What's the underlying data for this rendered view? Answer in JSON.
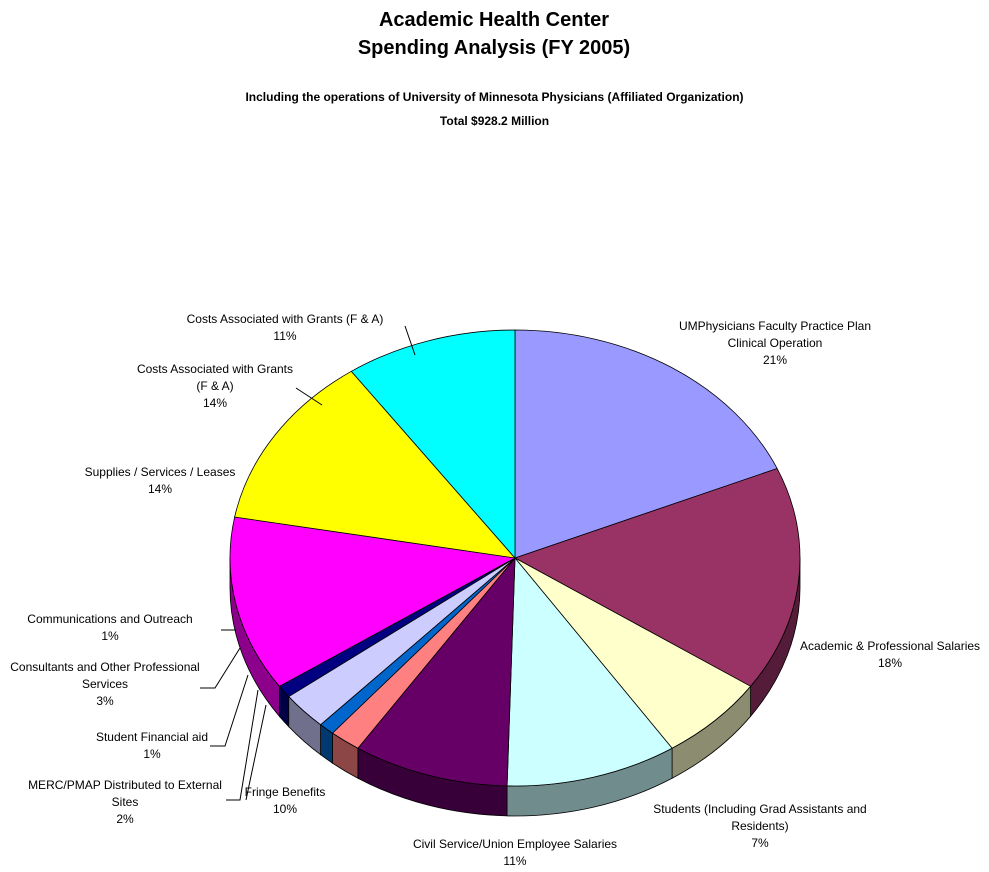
{
  "chart_data": {
    "type": "pie",
    "title": "Academic Health Center Spending Analysis (FY 2005)",
    "subtitle": "Including the operations of University of Minnesota Physicians (Affiliated Organization)",
    "total_label": "Total $928.2 Million",
    "three_d": true,
    "categories": [
      "UMPhysicians Faculty Practice Plan Clinical Operation",
      "Academic & Professional Salaries",
      "Students (Including Grad Assistants and Residents)",
      "Civil Service/Union Employee Salaries",
      "Fringe Benefits",
      "MERC/PMAP Distributed to External Sites",
      "Student Financial aid",
      "Consultants and Other Professional Services",
      "Communications and Outreach",
      "Supplies / Services / Leases",
      "Costs Associated with Grants (F & A)",
      "Costs Associated with Grants (F & A)"
    ],
    "values": [
      21,
      18,
      7,
      11,
      10,
      2,
      1,
      3,
      1,
      14,
      14,
      11
    ],
    "value_labels": [
      "21%",
      "18%",
      "7%",
      "11%",
      "10%",
      "2%",
      "1%",
      "3%",
      "1%",
      "14%",
      "14%",
      "11%"
    ],
    "colors": [
      "#9999ff",
      "#993366",
      "#ffffcc",
      "#ccffff",
      "#660066",
      "#ff8080",
      "#0066cc",
      "#ccccff",
      "#000080",
      "#ff00ff",
      "#ffff00",
      "#00ffff"
    ]
  }
}
